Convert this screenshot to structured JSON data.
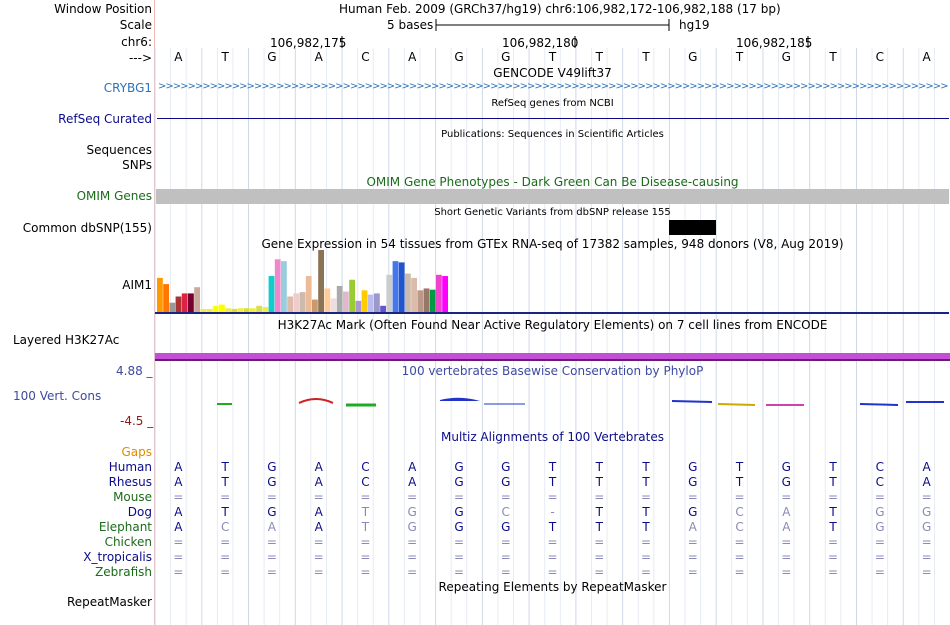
{
  "header": {
    "window_position_label": "Window Position",
    "window_position_value": "Human Feb. 2009 (GRCh37/hg19)   chr6:106,982,172-106,982,188 (17 bp)",
    "scale_label": "Scale",
    "scale_value": "5 bases",
    "scale_assembly": "hg19",
    "chr_label": "chr6:",
    "coords": [
      "106,982,175",
      "106,982,180",
      "106,982,185"
    ],
    "strand_label": "--->",
    "bases": [
      "A",
      "T",
      "G",
      "A",
      "C",
      "A",
      "G",
      "G",
      "T",
      "T",
      "T",
      "G",
      "T",
      "G",
      "T",
      "C",
      "A"
    ]
  },
  "tracks": {
    "gencode_title": "GENCODE V49lift37",
    "gencode_label": "CRYBG1",
    "refseq_title": "RefSeq genes from NCBI",
    "refseq_label": "RefSeq Curated",
    "pubs_title": "Publications: Sequences in Scientific Articles",
    "pubs_label": "Sequences",
    "snps_label": "SNPs",
    "omim_title": "OMIM Gene Phenotypes - Dark Green Can Be Disease-causing",
    "omim_label": "OMIM Genes",
    "dbsnp_title": "Short Genetic Variants from dbSNP release 155",
    "dbsnp_label": "Common dbSNP(155)",
    "gtex_title": "Gene Expression in 54 tissues from GTEx RNA-seq of 17382 samples, 948 donors (V8, Aug 2019)",
    "gtex_label": "AIM1",
    "h3k27_title": "H3K27Ac Mark (Often Found Near Active Regulatory Elements) on 7 cell lines from ENCODE",
    "h3k27_label": "Layered H3K27Ac",
    "cons_max": "4.88 _",
    "cons_min": "-4.5 _",
    "cons_title": "100 vertebrates Basewise Conservation by PhyloP",
    "cons_label": "100 Vert. Cons",
    "multiz_title": "Multiz Alignments of 100 Vertebrates",
    "gaps_label": "Gaps",
    "rmsk_title": "Repeating Elements by RepeatMasker",
    "rmsk_label": "RepeatMasker"
  },
  "colors": {
    "omim_bar": "#c0c0c0",
    "h3k27_band": "#c24fd6",
    "h3k27_line": "#6a1b7a",
    "gtex_axis": "#1a237e",
    "refseq_line": "#0b0b8a",
    "gencode": "#2c74b8",
    "cons_label": "#3d4aa0",
    "cons_min": "#8b1a1a"
  },
  "gtex_values": [
    {
      "v": 0.55,
      "c": "#ff9900"
    },
    {
      "v": 0.45,
      "c": "#ff7700"
    },
    {
      "v": 0.15,
      "c": "#999999"
    },
    {
      "v": 0.25,
      "c": "#aa3333"
    },
    {
      "v": 0.3,
      "c": "#dd2244"
    },
    {
      "v": 0.3,
      "c": "#770033"
    },
    {
      "v": 0.4,
      "c": "#ccaa99"
    },
    {
      "v": 0.05,
      "c": "#eeee44"
    },
    {
      "v": 0.05,
      "c": "#eeee44"
    },
    {
      "v": 0.1,
      "c": "#ffff00"
    },
    {
      "v": 0.12,
      "c": "#ffff00"
    },
    {
      "v": 0.06,
      "c": "#eeee44"
    },
    {
      "v": 0.05,
      "c": "#dddd33"
    },
    {
      "v": 0.06,
      "c": "#eeee44"
    },
    {
      "v": 0.06,
      "c": "#dddd33"
    },
    {
      "v": 0.06,
      "c": "#eeee44"
    },
    {
      "v": 0.1,
      "c": "#dddd55"
    },
    {
      "v": 0.08,
      "c": "#eeee44"
    },
    {
      "v": 0.58,
      "c": "#11cccc"
    },
    {
      "v": 0.85,
      "c": "#ee88cc"
    },
    {
      "v": 0.82,
      "c": "#99ccdd"
    },
    {
      "v": 0.25,
      "c": "#ddbbaa"
    },
    {
      "v": 0.3,
      "c": "#eecccc"
    },
    {
      "v": 0.32,
      "c": "#ccbbaa"
    },
    {
      "v": 0.58,
      "c": "#eebb99"
    },
    {
      "v": 0.2,
      "c": "#cc9966"
    },
    {
      "v": 1.0,
      "c": "#8b7355"
    },
    {
      "v": 0.38,
      "c": "#ffcc99"
    },
    {
      "v": 0.22,
      "c": "#eedddd"
    },
    {
      "v": 0.42,
      "c": "#aaaaaa"
    },
    {
      "v": 0.33,
      "c": "#ddbbcc"
    },
    {
      "v": 0.52,
      "c": "#99cc33"
    },
    {
      "v": 0.18,
      "c": "#aa99cc"
    },
    {
      "v": 0.35,
      "c": "#ffcc00"
    },
    {
      "v": 0.28,
      "c": "#bbbbee"
    },
    {
      "v": 0.3,
      "c": "#9999cc"
    },
    {
      "v": 0.1,
      "c": "#6655cc"
    },
    {
      "v": 0.6,
      "c": "#cccccc"
    },
    {
      "v": 0.82,
      "c": "#4477ee"
    },
    {
      "v": 0.8,
      "c": "#2255cc"
    },
    {
      "v": 0.62,
      "c": "#ccbbaa"
    },
    {
      "v": 0.55,
      "c": "#ddbbaa"
    },
    {
      "v": 0.35,
      "c": "#bb9988"
    },
    {
      "v": 0.38,
      "c": "#997766"
    },
    {
      "v": 0.36,
      "c": "#009944"
    },
    {
      "v": 0.6,
      "c": "#ee44cc"
    },
    {
      "v": 0.58,
      "c": "#ff00ff"
    }
  ],
  "multiz": {
    "species": [
      {
        "name": "Human",
        "color": "#0b0b8a",
        "bases": [
          "A",
          "T",
          "G",
          "A",
          "C",
          "A",
          "G",
          "G",
          "T",
          "T",
          "T",
          "G",
          "T",
          "G",
          "T",
          "C",
          "A"
        ],
        "dim": []
      },
      {
        "name": "Rhesus",
        "color": "#0b0b8a",
        "bases": [
          "A",
          "T",
          "G",
          "A",
          "C",
          "A",
          "G",
          "G",
          "T",
          "T",
          "T",
          "G",
          "T",
          "G",
          "T",
          "C",
          "A"
        ],
        "dim": []
      },
      {
        "name": "Mouse",
        "color": "#1a6b1a",
        "bases": [
          "=",
          "=",
          "=",
          "=",
          "=",
          "=",
          "=",
          "=",
          "=",
          "=",
          "=",
          "=",
          "=",
          "=",
          "=",
          "=",
          "="
        ],
        "dim": []
      },
      {
        "name": "Dog",
        "color": "#0b0b8a",
        "bases": [
          "A",
          "T",
          "G",
          "A",
          "T",
          "G",
          "G",
          "C",
          "-",
          "T",
          "T",
          "G",
          "C",
          "A",
          "T",
          "G",
          "G"
        ],
        "dim": [
          4,
          5,
          7,
          8,
          12,
          13,
          15,
          16
        ]
      },
      {
        "name": "Elephant",
        "color": "#1a6b1a",
        "bases": [
          "A",
          "C",
          "A",
          "A",
          "T",
          "G",
          "G",
          "G",
          "T",
          "T",
          "T",
          "A",
          "C",
          "A",
          "T",
          "G",
          "G"
        ],
        "dim": [
          1,
          2,
          4,
          5,
          11,
          12,
          13,
          15,
          16
        ]
      },
      {
        "name": "Chicken",
        "color": "#1a6b1a",
        "bases": [
          "=",
          "=",
          "=",
          "=",
          "=",
          "=",
          "=",
          "=",
          "=",
          "=",
          "=",
          "=",
          "=",
          "=",
          "=",
          "=",
          "="
        ],
        "dim": []
      },
      {
        "name": "X_tropicalis",
        "color": "#0b0b8a",
        "bases": [
          "=",
          "=",
          "=",
          "=",
          "=",
          "=",
          "=",
          "=",
          "=",
          "=",
          "=",
          "=",
          "=",
          "=",
          "=",
          "=",
          "="
        ],
        "dim": []
      },
      {
        "name": "Zebrafish",
        "color": "#1a6b1a",
        "bases": [
          "=",
          "=",
          "=",
          "=",
          "=",
          "=",
          "=",
          "=",
          "=",
          "=",
          "=",
          "=",
          "=",
          "=",
          "=",
          "=",
          "="
        ],
        "dim": []
      }
    ]
  }
}
